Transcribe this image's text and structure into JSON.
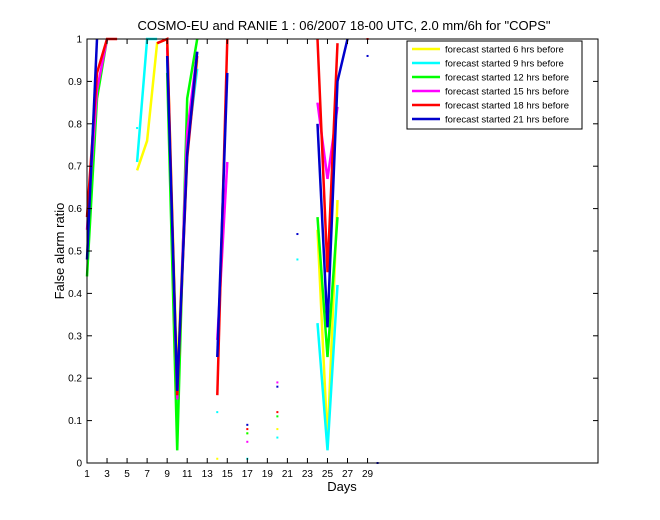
{
  "chart_data": {
    "type": "line",
    "title": "COSMO-EU and RANIE 1 : 06/2007 18-00 UTC, 2.0 mm/6h for \"COPS\"",
    "xlabel": "Days",
    "ylabel": "False alarm ratio",
    "xlim": [
      1,
      52
    ],
    "ylim": [
      0,
      1
    ],
    "xticks": [
      1,
      3,
      5,
      7,
      9,
      11,
      13,
      15,
      17,
      19,
      21,
      23,
      25,
      27,
      29
    ],
    "yticks": [
      0,
      0.1,
      0.2,
      0.3,
      0.4,
      0.5,
      0.6,
      0.7,
      0.8,
      0.9,
      1
    ],
    "legend_position": "top-right",
    "series": [
      {
        "name": "forecast started 6 hrs before",
        "color": "#ffff00",
        "segments": [
          [
            [
              6,
              0.69
            ],
            [
              7,
              0.76
            ],
            [
              8,
              0.99
            ],
            [
              9,
              1
            ]
          ],
          [
            [
              9,
              0.99
            ],
            [
              10,
              0.2
            ],
            [
              11,
              0.75
            ],
            [
              12,
              0.95
            ]
          ],
          [
            [
              24,
              0.55
            ],
            [
              25,
              0.05
            ],
            [
              26,
              0.62
            ]
          ]
        ],
        "points": [
          [
            14,
            0.01
          ],
          [
            17,
            0.07
          ],
          [
            20,
            0.08
          ]
        ]
      },
      {
        "name": "forecast started 9 hrs before",
        "color": "#00ffff",
        "segments": [
          [
            [
              6,
              0.71
            ],
            [
              7,
              1
            ],
            [
              8,
              1
            ]
          ],
          [
            [
              9,
              0.95
            ],
            [
              10,
              0.13
            ],
            [
              11,
              0.74
            ],
            [
              12,
              0.93
            ]
          ],
          [
            [
              24,
              0.33
            ],
            [
              25,
              0.03
            ],
            [
              26,
              0.42
            ]
          ]
        ],
        "points": [
          [
            6,
            0.79
          ],
          [
            14,
            0.12
          ],
          [
            17,
            0.01
          ],
          [
            20,
            0.06
          ],
          [
            22,
            0.48
          ]
        ]
      },
      {
        "name": "forecast started 12 hrs before",
        "color": "#00ff00",
        "segments": [
          [
            [
              1,
              0.44
            ],
            [
              2,
              0.86
            ],
            [
              3,
              1
            ]
          ],
          [
            [
              9,
              0.92
            ],
            [
              10,
              0.03
            ],
            [
              11,
              0.86
            ],
            [
              12,
              1
            ]
          ],
          [
            [
              24,
              0.58
            ],
            [
              25,
              0.25
            ],
            [
              26,
              0.58
            ]
          ]
        ],
        "points": [
          [
            17,
            0.07
          ],
          [
            20,
            0.11
          ]
        ]
      },
      {
        "name": "forecast started 15 hrs before",
        "color": "#ff00ff",
        "segments": [
          [
            [
              1,
              0.55
            ],
            [
              2,
              0.88
            ],
            [
              3,
              1
            ]
          ],
          [
            [
              9,
              0.98
            ],
            [
              10,
              0.15
            ],
            [
              11,
              0.78
            ],
            [
              12,
              0.97
            ]
          ],
          [
            [
              14,
              0.29
            ],
            [
              15,
              0.71
            ]
          ],
          [
            [
              24,
              0.85
            ],
            [
              25,
              0.67
            ],
            [
              26,
              0.84
            ]
          ]
        ],
        "points": [
          [
            17,
            0.05
          ],
          [
            20,
            0.19
          ]
        ]
      },
      {
        "name": "forecast started 18 hrs before",
        "color": "#ff0000",
        "segments": [
          [
            [
              1,
              0.58
            ],
            [
              2,
              0.92
            ],
            [
              3,
              1
            ],
            [
              4,
              1
            ]
          ],
          [
            [
              8,
              0.99
            ],
            [
              9,
              1
            ],
            [
              10,
              0.16
            ],
            [
              11,
              0.72
            ],
            [
              12,
              0.96
            ]
          ],
          [
            [
              14,
              0.16
            ],
            [
              15,
              1
            ]
          ],
          [
            [
              24,
              1
            ],
            [
              25,
              0.45
            ],
            [
              26,
              0.99
            ]
          ]
        ],
        "points": [
          [
            17,
            0.08
          ],
          [
            20,
            0.12
          ],
          [
            29,
            1
          ]
        ]
      },
      {
        "name": "forecast started 21 hrs before",
        "color": "#0000cc",
        "segments": [
          [
            [
              1,
              0.48
            ],
            [
              2,
              1
            ]
          ],
          [
            [
              9,
              0.96
            ],
            [
              10,
              0.17
            ],
            [
              11,
              0.73
            ],
            [
              12,
              0.97
            ]
          ],
          [
            [
              14,
              0.25
            ],
            [
              15,
              0.92
            ]
          ],
          [
            [
              24,
              0.8
            ],
            [
              25,
              0.32
            ],
            [
              26,
              0.9
            ],
            [
              27,
              1
            ]
          ]
        ],
        "points": [
          [
            17,
            0.09
          ],
          [
            20,
            0.18
          ],
          [
            22,
            0.54
          ],
          [
            29,
            0.96
          ],
          [
            30,
            0
          ]
        ]
      }
    ]
  }
}
